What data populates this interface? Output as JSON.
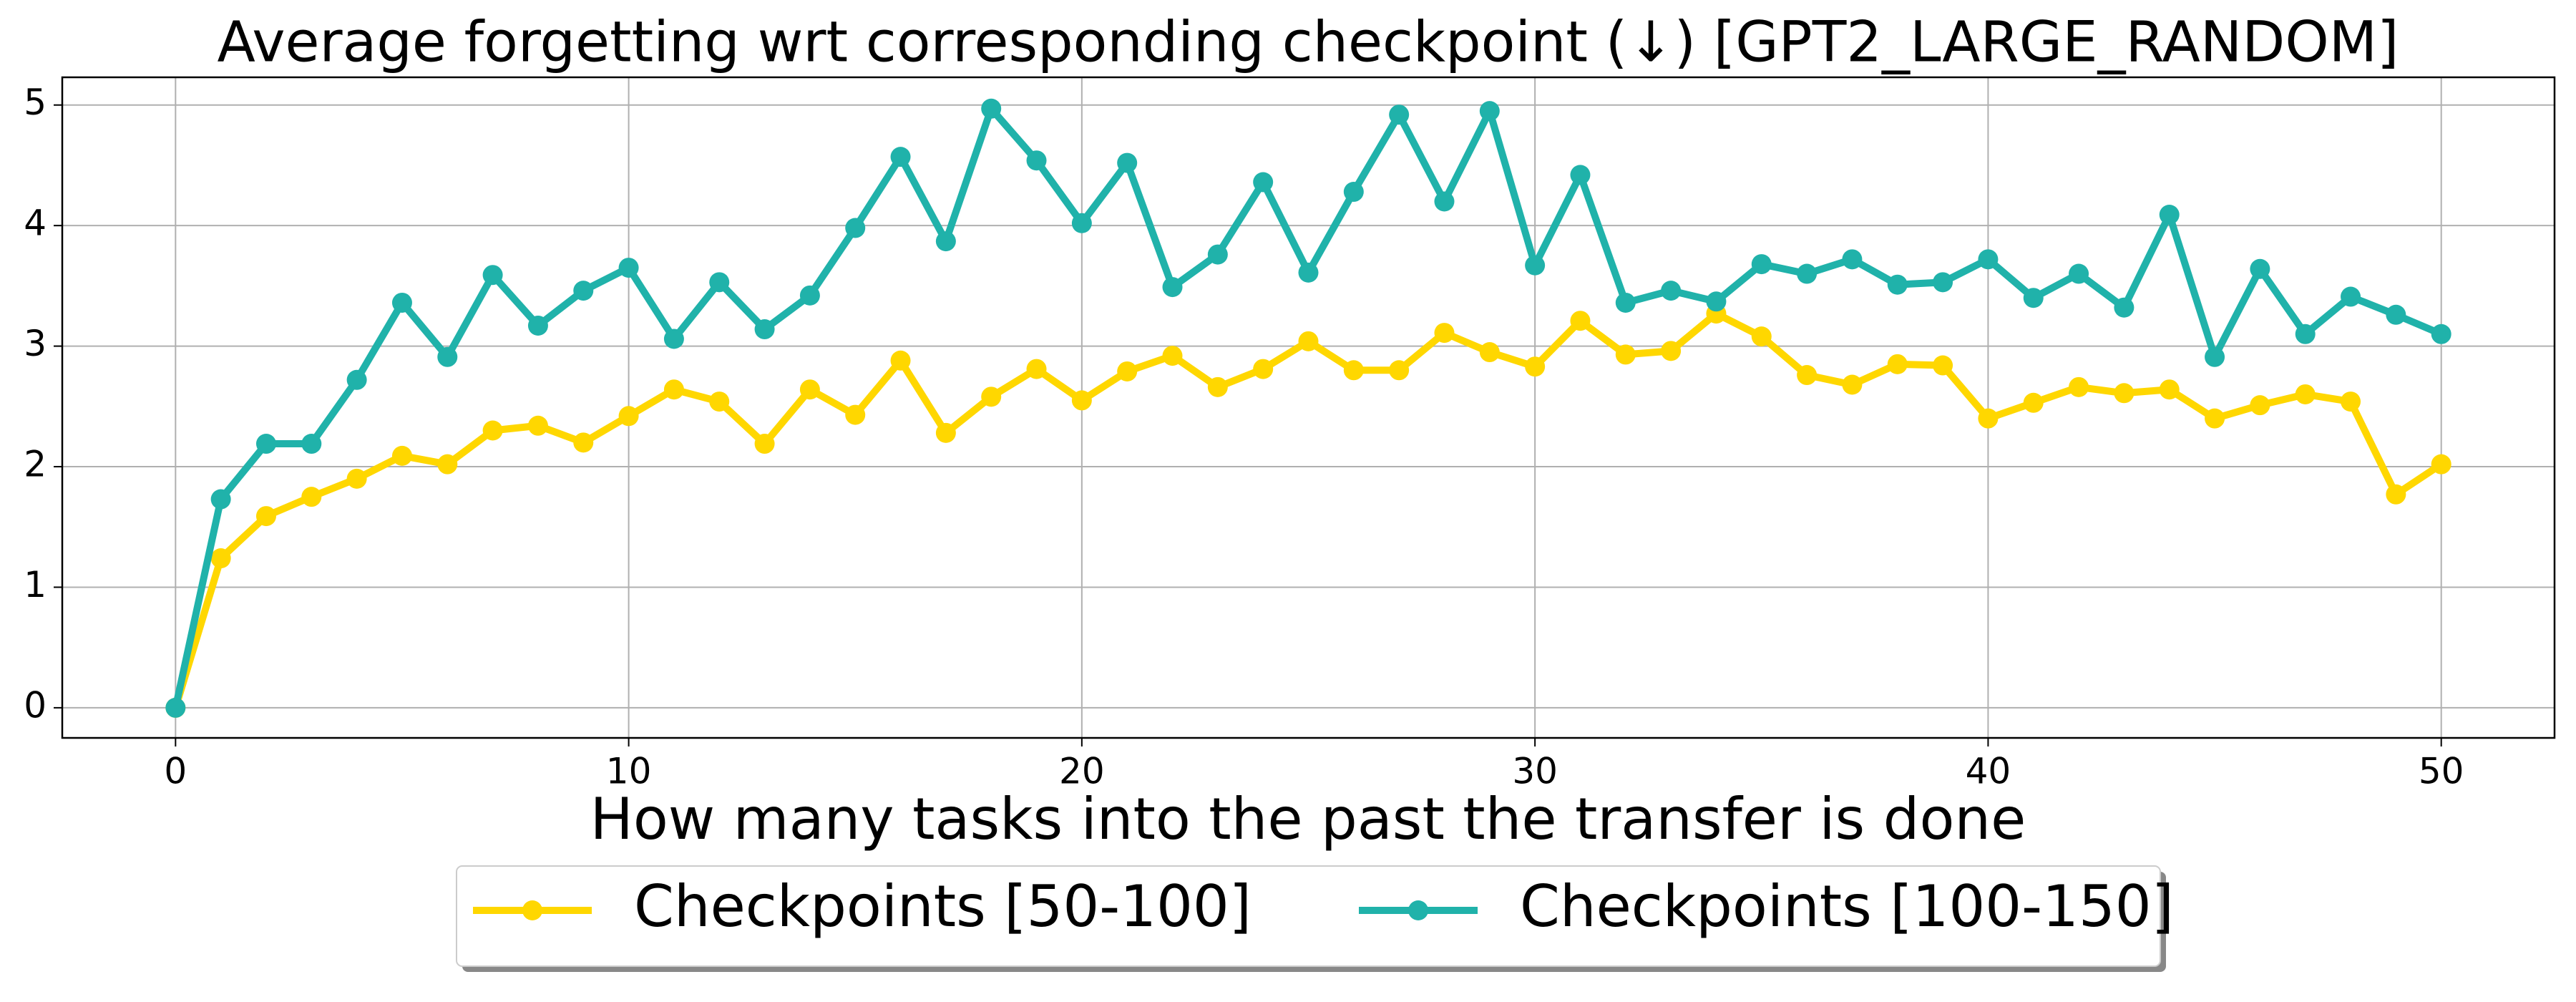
{
  "chart_data": {
    "type": "line",
    "title": "Average forgetting wrt corresponding checkpoint (↓) [GPT2_LARGE_RANDOM]",
    "x_label": "How many tasks into the past the transfer is done",
    "x": [
      0,
      1,
      2,
      3,
      4,
      5,
      6,
      7,
      8,
      9,
      10,
      11,
      12,
      13,
      14,
      15,
      16,
      17,
      18,
      19,
      20,
      21,
      22,
      23,
      24,
      25,
      26,
      27,
      28,
      29,
      30,
      31,
      32,
      33,
      34,
      35,
      36,
      37,
      38,
      39,
      40,
      41,
      42,
      43,
      44,
      45,
      46,
      47,
      48,
      49,
      50
    ],
    "series": [
      {
        "name": "Checkpoints [50-100]",
        "color": "#ffd700",
        "values": [
          0,
          1.24,
          1.59,
          1.75,
          1.9,
          2.09,
          2.02,
          2.3,
          2.34,
          2.2,
          2.42,
          2.64,
          2.54,
          2.19,
          2.64,
          2.43,
          2.88,
          2.28,
          2.58,
          2.81,
          2.55,
          2.79,
          2.92,
          2.66,
          2.81,
          3.04,
          2.8,
          2.8,
          3.11,
          2.95,
          2.83,
          3.21,
          2.93,
          2.96,
          3.27,
          3.08,
          2.76,
          2.68,
          2.85,
          2.84,
          2.4,
          2.53,
          2.66,
          2.61,
          2.64,
          2.4,
          2.51,
          2.6,
          2.54,
          1.77,
          2.02
        ]
      },
      {
        "name": "Checkpoints [100-150]",
        "color": "#20b2aa",
        "values": [
          0,
          1.73,
          2.19,
          2.19,
          2.72,
          3.36,
          2.91,
          3.59,
          3.17,
          3.46,
          3.65,
          3.06,
          3.53,
          3.14,
          3.42,
          3.98,
          4.57,
          3.87,
          4.97,
          4.54,
          4.02,
          4.52,
          3.49,
          3.76,
          4.36,
          3.61,
          4.28,
          4.92,
          4.2,
          4.95,
          3.67,
          4.42,
          3.36,
          3.46,
          3.37,
          3.68,
          3.6,
          3.72,
          3.51,
          3.53,
          3.72,
          3.4,
          3.6,
          3.32,
          4.09,
          2.91,
          3.64,
          3.1,
          3.41,
          3.26,
          3.1
        ]
      }
    ],
    "xlim": [
      -2.5,
      52.5
    ],
    "xticks": [
      0,
      10,
      20,
      30,
      40,
      50
    ],
    "ylim": [
      -0.25,
      5.23
    ],
    "yticks": [
      0,
      1,
      2,
      3,
      4,
      5
    ],
    "grid": true,
    "legend": "bottom"
  }
}
